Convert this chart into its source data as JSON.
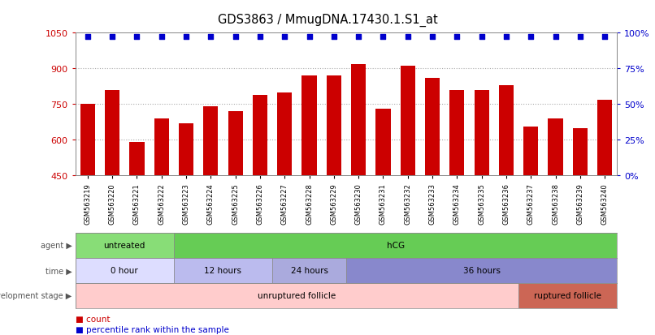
{
  "title": "GDS3863 / MmugDNA.17430.1.S1_at",
  "samples": [
    "GSM563219",
    "GSM563220",
    "GSM563221",
    "GSM563222",
    "GSM563223",
    "GSM563224",
    "GSM563225",
    "GSM563226",
    "GSM563227",
    "GSM563228",
    "GSM563229",
    "GSM563230",
    "GSM563231",
    "GSM563232",
    "GSM563233",
    "GSM563234",
    "GSM563235",
    "GSM563236",
    "GSM563237",
    "GSM563238",
    "GSM563239",
    "GSM563240"
  ],
  "counts": [
    750,
    810,
    590,
    690,
    670,
    740,
    720,
    790,
    800,
    870,
    870,
    920,
    730,
    910,
    860,
    810,
    810,
    830,
    655,
    690,
    650,
    770
  ],
  "ylim_left": [
    450,
    1050
  ],
  "ylim_right": [
    0,
    100
  ],
  "yticks_left": [
    450,
    600,
    750,
    900,
    1050
  ],
  "yticks_right": [
    0,
    25,
    50,
    75,
    100
  ],
  "bar_color": "#cc0000",
  "percentile_color": "#0000cc",
  "agent_sections": [
    {
      "label": "untreated",
      "start": 0,
      "end": 4,
      "color": "#88dd77"
    },
    {
      "label": "hCG",
      "start": 4,
      "end": 22,
      "color": "#66cc55"
    }
  ],
  "time_sections": [
    {
      "label": "0 hour",
      "start": 0,
      "end": 4,
      "color": "#ddddff"
    },
    {
      "label": "12 hours",
      "start": 4,
      "end": 8,
      "color": "#bbbbee"
    },
    {
      "label": "24 hours",
      "start": 8,
      "end": 11,
      "color": "#aaaadd"
    },
    {
      "label": "36 hours",
      "start": 11,
      "end": 22,
      "color": "#8888cc"
    }
  ],
  "dev_sections": [
    {
      "label": "unruptured follicle",
      "start": 0,
      "end": 18,
      "color": "#ffcccc"
    },
    {
      "label": "ruptured follicle",
      "start": 18,
      "end": 22,
      "color": "#cc6655"
    }
  ],
  "row_labels": [
    "agent",
    "time",
    "development stage"
  ],
  "background_color": "#ffffff",
  "dotted_grid_values": [
    600,
    750,
    900
  ]
}
